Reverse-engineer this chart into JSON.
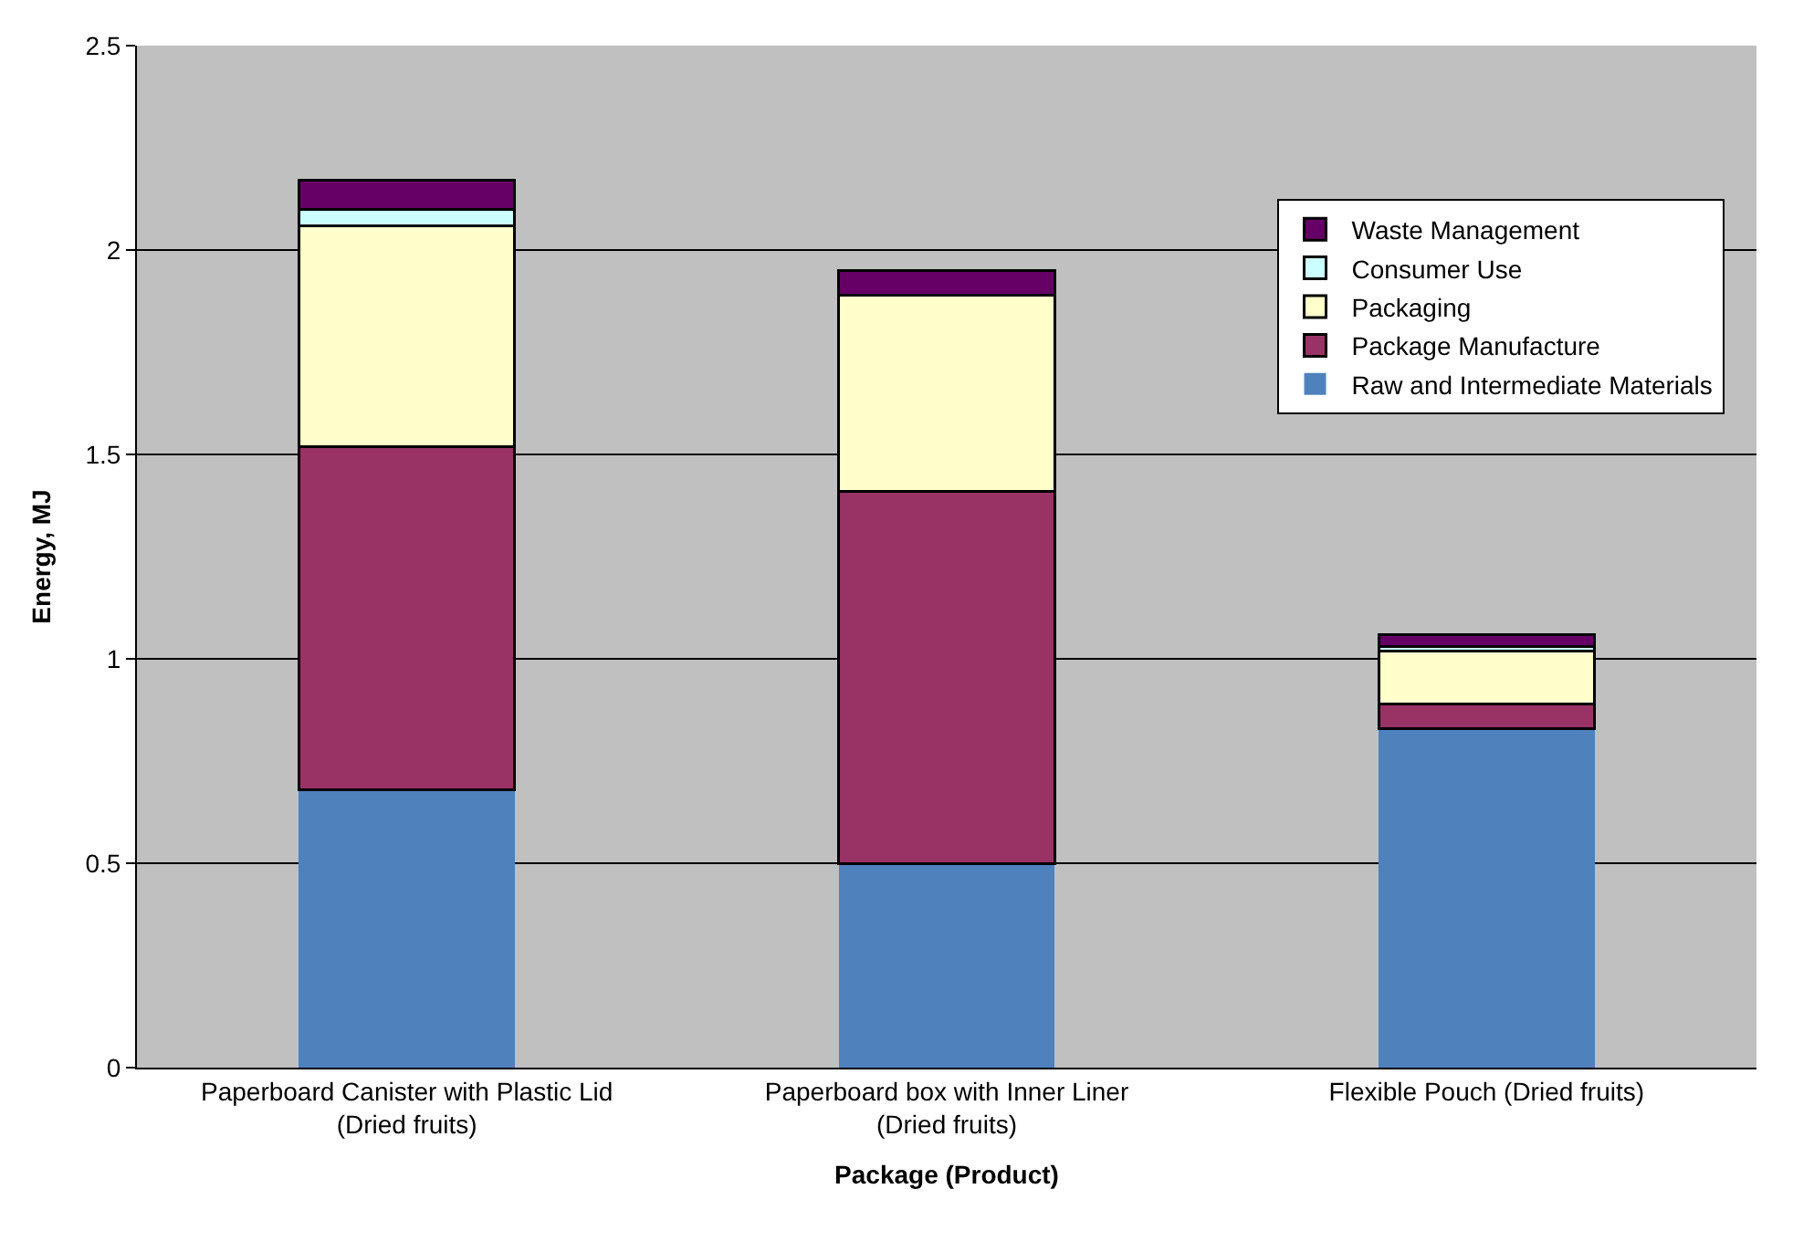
{
  "chart_data": {
    "type": "bar",
    "stacked": true,
    "xlabel": "Package (Product)",
    "ylabel": "Energy, MJ",
    "categories": [
      "Paperboard Canister with Plastic Lid (Dried fruits)",
      "Paperboard box with Inner Liner (Dried fruits)",
      "Flexible Pouch (Dried fruits)"
    ],
    "series": [
      {
        "name": "Raw and Intermediate Materials",
        "color": "#4f81bd",
        "values": [
          0.68,
          0.5,
          0.83
        ]
      },
      {
        "name": "Package Manufacture",
        "color": "#993366",
        "values": [
          0.84,
          0.91,
          0.06
        ]
      },
      {
        "name": "Packaging",
        "color": "#ffffcc",
        "values": [
          0.54,
          0.48,
          0.13
        ]
      },
      {
        "name": "Consumer Use",
        "color": "#ccffff",
        "values": [
          0.04,
          0,
          0.01
        ]
      },
      {
        "name": "Waste Management",
        "color": "#660066",
        "values": [
          0.07,
          0.06,
          0.03
        ]
      }
    ],
    "ylim": [
      0,
      2.5
    ],
    "yticks": [
      0,
      0.5,
      1,
      1.5,
      2,
      2.5
    ],
    "grid": "y",
    "legend": "top right"
  }
}
